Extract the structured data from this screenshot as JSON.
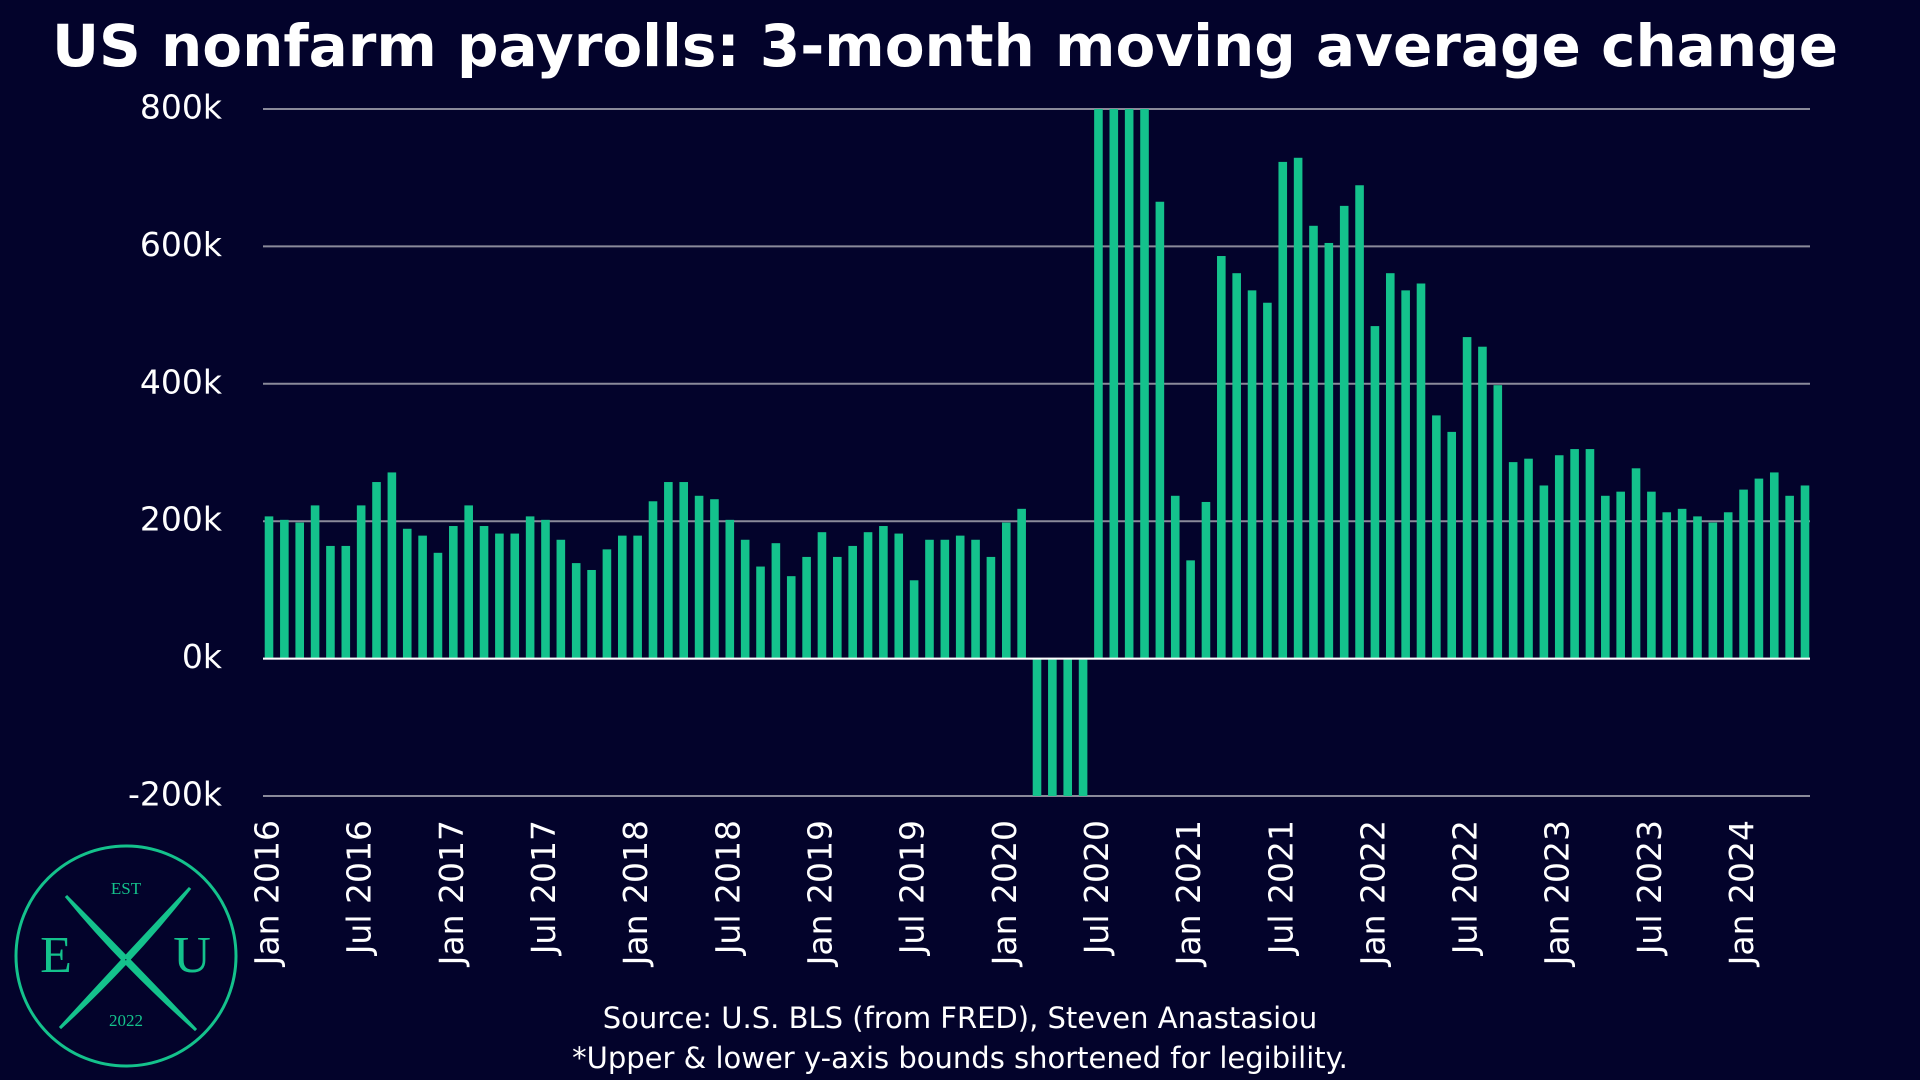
{
  "chart_data": {
    "type": "bar",
    "title": "US nonfarm payrolls: 3-month moving average change",
    "source": "Source: U.S. BLS (from FRED), Steven Anastasiou",
    "note": "*Upper & lower y-axis bounds shortened for legibility.",
    "logo": {
      "top": "EST",
      "left": "E",
      "right": "U",
      "bottom": "2022"
    },
    "color": "#14c28c",
    "categories": [
      "Jan 2016",
      null,
      null,
      null,
      null,
      null,
      "Jul 2016",
      null,
      null,
      null,
      null,
      null,
      "Jan 2017",
      null,
      null,
      null,
      null,
      null,
      "Jul 2017",
      null,
      null,
      null,
      null,
      null,
      "Jan 2018",
      null,
      null,
      null,
      null,
      null,
      "Jul 2018",
      null,
      null,
      null,
      null,
      null,
      "Jan 2019",
      null,
      null,
      null,
      null,
      null,
      "Jul 2019",
      null,
      null,
      null,
      null,
      null,
      "Jan 2020",
      null,
      null,
      null,
      null,
      null,
      "Jul 2020",
      null,
      null,
      null,
      null,
      null,
      "Jan 2021",
      null,
      null,
      null,
      null,
      null,
      "Jul 2021",
      null,
      null,
      null,
      null,
      null,
      "Jan 2022",
      null,
      null,
      null,
      null,
      null,
      "Jul 2022",
      null,
      null,
      null,
      null,
      null,
      "Jan 2023",
      null,
      null,
      null,
      null,
      null,
      "Jul 2023",
      null,
      null,
      null,
      null,
      null,
      "Jan 2024",
      null,
      null,
      null,
      null
    ],
    "values": [
      207,
      202,
      198,
      223,
      164,
      164,
      223,
      257,
      271,
      189,
      179,
      154,
      193,
      223,
      193,
      182,
      182,
      207,
      202,
      173,
      139,
      129,
      159,
      179,
      179,
      229,
      257,
      257,
      237,
      232,
      202,
      173,
      134,
      168,
      120,
      148,
      184,
      148,
      164,
      184,
      193,
      182,
      114,
      173,
      173,
      179,
      173,
      148,
      198,
      218,
      -200,
      -200,
      -200,
      -200,
      800,
      800,
      800,
      800,
      665,
      237,
      143,
      228,
      586,
      561,
      536,
      518,
      723,
      729,
      630,
      605,
      659,
      689,
      484,
      561,
      536,
      546,
      354,
      330,
      468,
      454,
      398,
      286,
      291,
      252,
      296,
      305,
      305,
      237,
      243,
      277,
      243,
      213,
      218,
      207,
      198,
      213,
      246,
      262,
      271,
      237,
      252
    ],
    "ylim": [
      -200,
      800
    ],
    "yticks": [
      {
        "value": -200,
        "label": "-200k"
      },
      {
        "value": 0,
        "label": "0k"
      },
      {
        "value": 200,
        "label": "200k"
      },
      {
        "value": 400,
        "label": "400k"
      },
      {
        "value": 600,
        "label": "600k"
      },
      {
        "value": 800,
        "label": "800k"
      }
    ],
    "grid": true
  }
}
